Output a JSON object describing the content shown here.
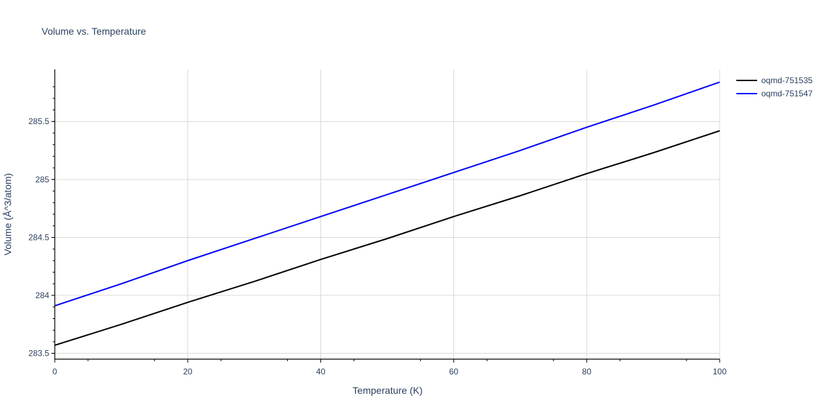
{
  "chart_data": {
    "type": "line",
    "title": "Volume vs. Temperature",
    "xlabel": "Temperature (K)",
    "ylabel": "Volume (Å^3/atom)",
    "xlim": [
      0,
      100
    ],
    "ylim": [
      283.45,
      285.95
    ],
    "x_ticks": [
      0,
      20,
      40,
      60,
      80,
      100
    ],
    "x_tick_labels": [
      "0",
      "20",
      "40",
      "60",
      "80",
      "100"
    ],
    "y_ticks": [
      283.5,
      284,
      284.5,
      285,
      285.5
    ],
    "y_tick_labels": [
      "283.5",
      "284",
      "284.5",
      "285",
      "285.5"
    ],
    "grid": true,
    "legend_position": "top-right",
    "series": [
      {
        "name": "oqmd-751535",
        "color": "#000000",
        "x": [
          0,
          10,
          20,
          30,
          40,
          50,
          60,
          70,
          80,
          90,
          100
        ],
        "values": [
          283.57,
          283.75,
          283.94,
          284.12,
          284.31,
          284.49,
          284.68,
          284.86,
          285.05,
          285.23,
          285.42
        ]
      },
      {
        "name": "oqmd-751547",
        "color": "#0000ff",
        "x": [
          0,
          10,
          20,
          30,
          40,
          50,
          60,
          70,
          80,
          90,
          100
        ],
        "values": [
          283.91,
          284.1,
          284.3,
          284.49,
          284.68,
          284.87,
          285.06,
          285.25,
          285.45,
          285.64,
          285.84
        ]
      }
    ]
  }
}
